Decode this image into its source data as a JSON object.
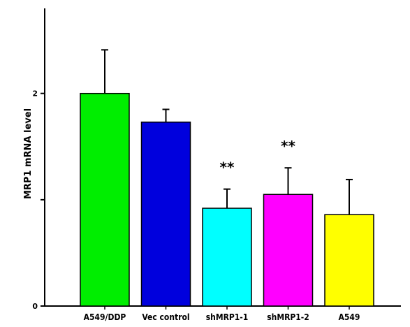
{
  "chart_data": {
    "type": "bar",
    "title": "",
    "xlabel": "",
    "ylabel": "MRP1 mRNA level",
    "ylim": [
      0,
      2.8
    ],
    "yticks": [
      0,
      1,
      2
    ],
    "yticks_labeled": [
      0,
      2
    ],
    "ytick_labels": [
      "0",
      "2"
    ],
    "categories": [
      "A549/DDP",
      "Vec control",
      "shMRP1-1",
      "shMRP1-2",
      "A549"
    ],
    "values": [
      2.0,
      1.73,
      0.92,
      1.05,
      0.86
    ],
    "errors": [
      0.41,
      0.12,
      0.18,
      0.25,
      0.33
    ],
    "colors": [
      "#00ee00",
      "#0000dd",
      "#00ffff",
      "#ff00ff",
      "#ffff00"
    ],
    "annotations": [
      "",
      "",
      "**",
      "**",
      ""
    ],
    "grid": false,
    "legend": "none"
  }
}
